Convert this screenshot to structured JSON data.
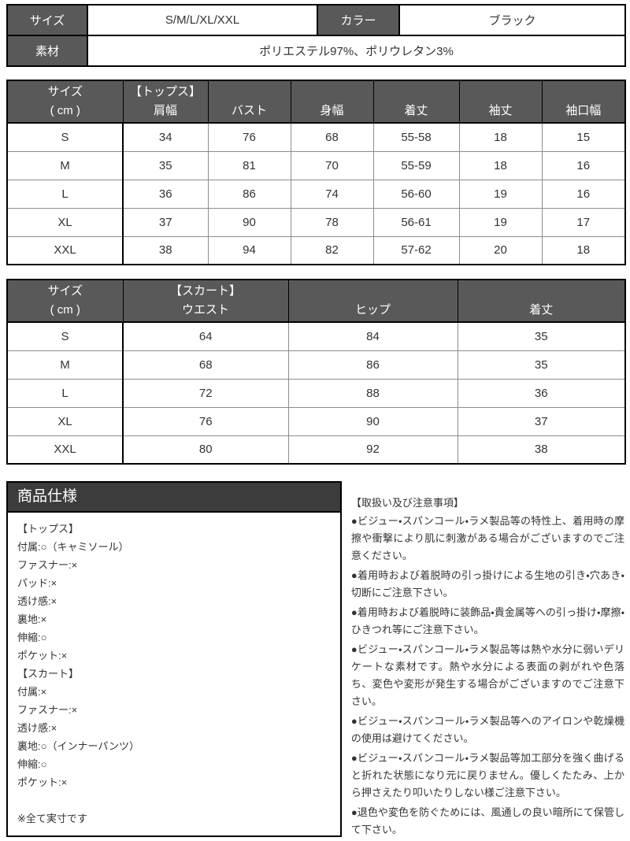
{
  "colors": {
    "header_dark": "#595959",
    "title_dark": "#3c3c3c",
    "border_black": "#000000",
    "grid_gray": "#8c8c8c",
    "text_color": "#333333",
    "text_on_dark": "#ffffff",
    "page_bg": "#ffffff"
  },
  "info_table": {
    "size_label": "サイズ",
    "size_value": "S/M/L/XL/XXL",
    "color_label": "カラー",
    "color_value": "ブラック",
    "material_label": "素材",
    "material_value": "ポリエステル97%、ポリウレタン3%"
  },
  "tops_table": {
    "columns": [
      [
        "サイズ",
        "( cm )"
      ],
      [
        "【トップス】",
        "肩幅"
      ],
      [
        "",
        "バスト"
      ],
      [
        "",
        "身幅"
      ],
      [
        "",
        "着丈"
      ],
      [
        "",
        "袖丈"
      ],
      [
        "",
        "袖口幅"
      ]
    ],
    "rows": [
      [
        "S",
        "34",
        "76",
        "68",
        "55-58",
        "18",
        "15"
      ],
      [
        "M",
        "35",
        "81",
        "70",
        "55-59",
        "18",
        "16"
      ],
      [
        "L",
        "36",
        "86",
        "74",
        "56-60",
        "19",
        "16"
      ],
      [
        "XL",
        "37",
        "90",
        "78",
        "56-61",
        "19",
        "17"
      ],
      [
        "XXL",
        "38",
        "94",
        "82",
        "57-62",
        "20",
        "18"
      ]
    ]
  },
  "skirt_table": {
    "columns": [
      [
        "サイズ",
        "( cm )"
      ],
      [
        "【スカート】",
        "ウエスト"
      ],
      [
        "",
        "ヒップ"
      ],
      [
        "",
        "着丈"
      ]
    ],
    "rows": [
      [
        "S",
        "64",
        "84",
        "35"
      ],
      [
        "M",
        "68",
        "86",
        "35"
      ],
      [
        "L",
        "72",
        "88",
        "36"
      ],
      [
        "XL",
        "76",
        "90",
        "37"
      ],
      [
        "XXL",
        "80",
        "92",
        "38"
      ]
    ]
  },
  "product_spec": {
    "title": "商品仕様",
    "lines": [
      "【トップス】",
      "付属:○（キャミソール）",
      "ファスナー:×",
      "パッド:×",
      "透け感:×",
      "裏地:×",
      "伸縮:○",
      "ポケット:×",
      "【スカート】",
      "付属:×",
      "ファスナー:×",
      "透け感:×",
      "裏地:○（インナーパンツ）",
      "伸縮:○",
      "ポケット:×",
      "",
      "※全て実寸です"
    ]
  },
  "notes": {
    "title": "【取扱い及び注意事項】",
    "items": [
      "●ビジュー・スパンコール・ラメ製品等の特性上、着用時の摩擦や衝撃により肌に刺激がある場合がございますのでご注意ください。",
      "●着用時および着脱時の引っ掛けによる生地の引き・穴あき・切断にご注意下さい。",
      "●着用時および着脱時に装飾品・貴金属等への引っ掛け・摩擦・ひきつれ等にご注意下さい。",
      "●ビジュー・スパンコール・ラメ製品等は熱や水分に弱いデリケートな素材です。熱や水分による表面の剥がれや色落ち、変色や変形が発生する場合がございますのでご注意下さい。",
      "●ビジュー・スパンコール・ラメ製品等へのアイロンや乾燥機の使用は避けてください。",
      "●ビジュー・スパンコール・ラメ製品等加工部分を強く曲げると折れた状態になり元に戻りません。優しくたたみ、上から押さえたり叩いたりしない様ご注意下さい。",
      "●退色や変色を防ぐためには、風通しの良い暗所にて保管して下さい。"
    ]
  }
}
